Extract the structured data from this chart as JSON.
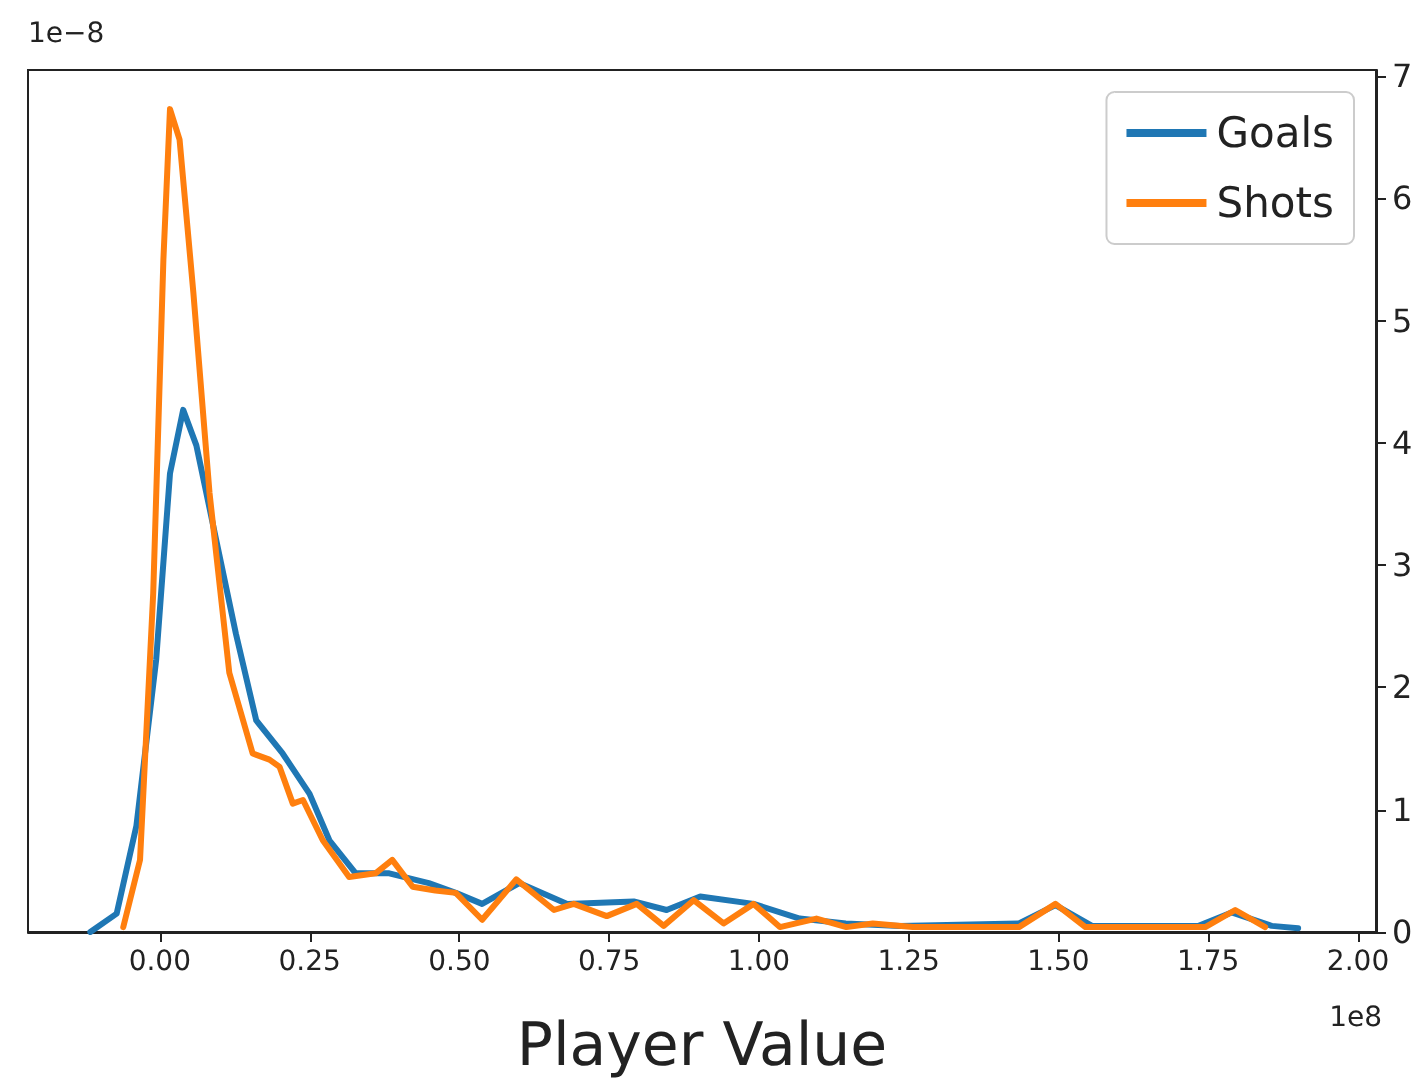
{
  "chart_data": {
    "type": "line",
    "xlabel": "Player Value",
    "annotations": [
      "1e−8",
      "1e8"
    ],
    "xlim": [
      -0.22,
      2.03
    ],
    "ylim": [
      0,
      7.05
    ],
    "xticks": [
      {
        "value": 0,
        "label": "0.00"
      },
      {
        "value": 0.25,
        "label": "0.25"
      },
      {
        "value": 0.5,
        "label": "0.50"
      },
      {
        "value": 0.75,
        "label": "0.75"
      },
      {
        "value": 1,
        "label": "1.00"
      },
      {
        "value": 1.25,
        "label": "1.25"
      },
      {
        "value": 1.5,
        "label": "1.50"
      },
      {
        "value": 1.75,
        "label": "1.75"
      },
      {
        "value": 2,
        "label": "2.00"
      }
    ],
    "yticks": [
      0,
      1,
      2,
      3,
      4,
      5,
      6,
      7
    ],
    "grid": false,
    "legend": "top right",
    "marker": "none",
    "line_style": "solid",
    "series": [
      {
        "name": "Goals",
        "color": "#1f77b4",
        "x": [
          -0.116,
          -0.072,
          -0.039,
          -0.006,
          0.017,
          0.039,
          0.061,
          0.094,
          0.127,
          0.161,
          0.205,
          0.25,
          0.283,
          0.327,
          0.383,
          0.449,
          0.494,
          0.538,
          0.6,
          0.68,
          0.791,
          0.846,
          0.902,
          0.991,
          1.068,
          1.145,
          1.235,
          1.434,
          1.495,
          1.556,
          1.734,
          1.789,
          1.856,
          1.9
        ],
        "values": [
          0.0,
          0.15,
          0.87,
          2.23,
          3.75,
          4.27,
          3.98,
          3.21,
          2.44,
          1.73,
          1.46,
          1.13,
          0.75,
          0.48,
          0.48,
          0.4,
          0.32,
          0.23,
          0.4,
          0.23,
          0.25,
          0.18,
          0.29,
          0.23,
          0.11,
          0.07,
          0.05,
          0.07,
          0.22,
          0.05,
          0.05,
          0.16,
          0.05,
          0.03
        ]
      },
      {
        "name": "Shots",
        "color": "#ff7f0e",
        "x": [
          -0.061,
          -0.033,
          -0.011,
          0.006,
          0.017,
          0.033,
          0.056,
          0.083,
          0.116,
          0.155,
          0.183,
          0.2,
          0.222,
          0.239,
          0.272,
          0.316,
          0.36,
          0.388,
          0.422,
          0.46,
          0.494,
          0.538,
          0.595,
          0.658,
          0.691,
          0.746,
          0.796,
          0.841,
          0.891,
          0.941,
          0.991,
          1.035,
          1.096,
          1.146,
          1.19,
          1.257,
          1.434,
          1.495,
          1.545,
          1.745,
          1.795,
          1.845
        ],
        "values": [
          0.04,
          0.59,
          2.77,
          5.5,
          6.73,
          6.48,
          5.23,
          3.59,
          2.12,
          1.46,
          1.41,
          1.35,
          1.05,
          1.08,
          0.75,
          0.45,
          0.48,
          0.59,
          0.37,
          0.34,
          0.32,
          0.1,
          0.43,
          0.18,
          0.23,
          0.13,
          0.23,
          0.05,
          0.26,
          0.07,
          0.23,
          0.04,
          0.11,
          0.04,
          0.07,
          0.04,
          0.04,
          0.23,
          0.04,
          0.04,
          0.18,
          0.04
        ]
      }
    ]
  }
}
